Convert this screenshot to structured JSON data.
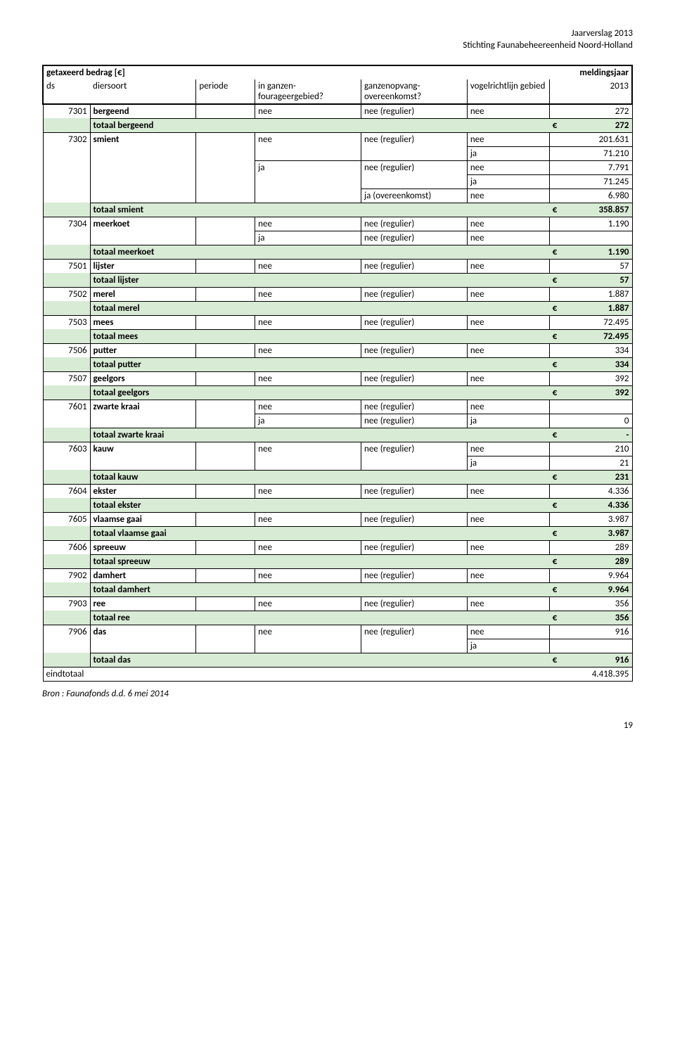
{
  "header": {
    "line1": "Jaarverslag 2013",
    "line2": "Stichting Faunabeheereenheid Noord-Holland"
  },
  "table_head": {
    "title": "getaxeerd bedrag [€]",
    "meldingsjaar": "meldingsjaar",
    "ds": "ds",
    "diersoort": "diersoort",
    "periode": "periode",
    "fourageer": "in ganzen-fourageergebied?",
    "overeenkomst": "ganzenopvang-overeenkomst?",
    "vogelrichtlijn": "vogelrichtlijn gebied",
    "year": "2013"
  },
  "rows": {
    "r7301": {
      "ds": "7301",
      "soort": "bergeend",
      "c3": "nee",
      "c4": "nee (regulier)",
      "c5": "nee",
      "val": "272"
    },
    "t7301": {
      "label": "totaal bergeend",
      "eu": "€",
      "val": "272"
    },
    "r7302a": {
      "ds": "7302",
      "soort": "smient",
      "c3": "nee",
      "c4": "nee (regulier)",
      "c5": "nee",
      "val": "201.631"
    },
    "r7302b": {
      "c5": "ja",
      "val": "71.210"
    },
    "r7302c": {
      "c3": "ja",
      "c4": "nee (regulier)",
      "c5": "nee",
      "val": "7.791"
    },
    "r7302d": {
      "c5": "ja",
      "val": "71.245"
    },
    "r7302e": {
      "c4": "ja (overeenkomst)",
      "c5": "nee",
      "val": "6.980"
    },
    "t7302": {
      "label": "totaal smient",
      "eu": "€",
      "val": "358.857"
    },
    "r7304a": {
      "ds": "7304",
      "soort": "meerkoet",
      "c3": "nee",
      "c4": "nee (regulier)",
      "c5": "nee",
      "val": "1.190"
    },
    "r7304b": {
      "c3": "ja",
      "c4": "nee (regulier)",
      "c5": "nee",
      "val": ""
    },
    "t7304": {
      "label": "totaal meerkoet",
      "eu": "€",
      "val": "1.190"
    },
    "r7501": {
      "ds": "7501",
      "soort": "lijster",
      "c3": "nee",
      "c4": "nee (regulier)",
      "c5": "nee",
      "val": "57"
    },
    "t7501": {
      "label": "totaal lijster",
      "eu": "€",
      "val": "57"
    },
    "r7502": {
      "ds": "7502",
      "soort": "merel",
      "c3": "nee",
      "c4": "nee (regulier)",
      "c5": "nee",
      "val": "1.887"
    },
    "t7502": {
      "label": "totaal merel",
      "eu": "€",
      "val": "1.887"
    },
    "r7503": {
      "ds": "7503",
      "soort": "mees",
      "c3": "nee",
      "c4": "nee (regulier)",
      "c5": "nee",
      "val": "72.495"
    },
    "t7503": {
      "label": "totaal mees",
      "eu": "€",
      "val": "72.495"
    },
    "r7506": {
      "ds": "7506",
      "soort": "putter",
      "c3": "nee",
      "c4": "nee (regulier)",
      "c5": "nee",
      "val": "334"
    },
    "t7506": {
      "label": "totaal putter",
      "eu": "€",
      "val": "334"
    },
    "r7507": {
      "ds": "7507",
      "soort": "geelgors",
      "c3": "nee",
      "c4": "nee (regulier)",
      "c5": "nee",
      "val": "392"
    },
    "t7507": {
      "label": "totaal geelgors",
      "eu": "€",
      "val": "392"
    },
    "r7601a": {
      "ds": "7601",
      "soort": "zwarte kraai",
      "c3": "nee",
      "c4": "nee (regulier)",
      "c5": "nee",
      "val": ""
    },
    "r7601b": {
      "c3": "ja",
      "c4": "nee (regulier)",
      "c5": "ja",
      "val": "0"
    },
    "t7601": {
      "label": "totaal zwarte kraai",
      "eu": "€",
      "val": "-"
    },
    "r7603a": {
      "ds": "7603",
      "soort": "kauw",
      "c3": "nee",
      "c4": "nee (regulier)",
      "c5": "nee",
      "val": "210"
    },
    "r7603b": {
      "c5": "ja",
      "val": "21"
    },
    "t7603": {
      "label": "totaal kauw",
      "eu": "€",
      "val": "231"
    },
    "r7604": {
      "ds": "7604",
      "soort": "ekster",
      "c3": "nee",
      "c4": "nee (regulier)",
      "c5": "nee",
      "val": "4.336"
    },
    "t7604": {
      "label": "totaal ekster",
      "eu": "€",
      "val": "4.336"
    },
    "r7605": {
      "ds": "7605",
      "soort": "vlaamse gaai",
      "c3": "nee",
      "c4": "nee (regulier)",
      "c5": "nee",
      "val": "3.987"
    },
    "t7605": {
      "label": "totaal vlaamse gaai",
      "eu": "€",
      "val": "3.987"
    },
    "r7606": {
      "ds": "7606",
      "soort": "spreeuw",
      "c3": "nee",
      "c4": "nee (regulier)",
      "c5": "nee",
      "val": "289"
    },
    "t7606": {
      "label": "totaal spreeuw",
      "eu": "€",
      "val": "289"
    },
    "r7902": {
      "ds": "7902",
      "soort": "damhert",
      "c3": "nee",
      "c4": "nee (regulier)",
      "c5": "nee",
      "val": "9.964"
    },
    "t7902": {
      "label": "totaal damhert",
      "eu": "€",
      "val": "9.964"
    },
    "r7903": {
      "ds": "7903",
      "soort": "ree",
      "c3": "nee",
      "c4": "nee (regulier)",
      "c5": "nee",
      "val": "356"
    },
    "t7903": {
      "label": "totaal ree",
      "eu": "€",
      "val": "356"
    },
    "r7906a": {
      "ds": "7906",
      "soort": "das",
      "c3": "nee",
      "c4": "nee (regulier)",
      "c5": "nee",
      "val": "916"
    },
    "r7906b": {
      "c5": "ja",
      "val": ""
    },
    "t7906": {
      "label": "totaal das",
      "eu": "€",
      "val": "916"
    },
    "eind": {
      "label": "eindtotaal",
      "val": "4.418.395"
    }
  },
  "footer": {
    "source": "Bron : Faunafonds d.d. 6 mei 2014",
    "page": "19"
  }
}
